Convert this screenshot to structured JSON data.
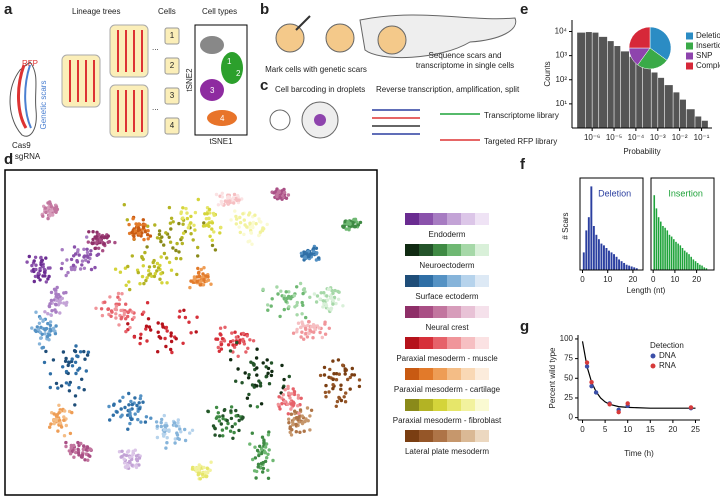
{
  "panels": {
    "a": {
      "letter": "a",
      "lineage_trees": "Lineage trees",
      "cells": "Cells",
      "cell_types": "Cell types",
      "rfp": "RFP",
      "genetic_scars": "Genetic scars",
      "cas9": "Cas9",
      "sgrna": "+ sgRNA",
      "cell_ids": [
        "1",
        "2",
        "3",
        "4"
      ],
      "ellipses": [
        "...",
        "..."
      ],
      "cluster_ids": [
        "1",
        "2",
        "3",
        "4"
      ],
      "tsne2": "tSNE2",
      "tsne1": "tSNE1"
    },
    "b": {
      "letter": "b",
      "mark": "Mark cells with genetic scars",
      "sequence": [
        "Sequence scars and",
        "transcriptome in single cells"
      ]
    },
    "c": {
      "letter": "c",
      "barcoding": "Cell barcoding in droplets",
      "rt": "Reverse transcription, amplification, split",
      "transcriptome": "Transcriptome library",
      "targeted": "Targeted RFP library"
    },
    "d": {
      "letter": "d",
      "legend": [
        {
          "name": "Endoderm",
          "colors": [
            "#6a2c91",
            "#8a52ab",
            "#a77cc2",
            "#c3a3d6",
            "#dcc6e8",
            "#efe3f5"
          ]
        },
        {
          "name": "Neuroectoderm",
          "colors": [
            "#102a12",
            "#24542a",
            "#3f8a44",
            "#6fb873",
            "#a6d8a8",
            "#d9f0d9"
          ]
        },
        {
          "name": "Surface ectoderm",
          "colors": [
            "#1f4e79",
            "#2f6fa6",
            "#5592c4",
            "#86b4da",
            "#b6d3ec",
            "#dde9f5"
          ]
        },
        {
          "name": "Neural crest",
          "colors": [
            "#8e2f68",
            "#a94f85",
            "#c2769f",
            "#d79dbb",
            "#e8c2d6",
            "#f5e1eb"
          ]
        },
        {
          "name": "Paraxial mesoderm - muscle",
          "colors": [
            "#b5121b",
            "#d6303a",
            "#e6626a",
            "#f0959a",
            "#f6bfc2",
            "#fbe2e3"
          ]
        },
        {
          "name": "Paraxial mesoderm - cartilage",
          "colors": [
            "#c85a12",
            "#e27a2a",
            "#ee9d55",
            "#f4bd86",
            "#f9d8b5",
            "#fcecdc"
          ]
        },
        {
          "name": "Paraxial mesoderm - fibroblast",
          "colors": [
            "#8a8a1a",
            "#b3b324",
            "#d4d43a",
            "#e6e66a",
            "#f2f29e",
            "#fafad2"
          ]
        },
        {
          "name": "Lateral plate mesoderm",
          "colors": [
            "#7a3e12",
            "#955628",
            "#ae7447",
            "#c6976c",
            "#dab995",
            "#ecd8c0"
          ]
        }
      ]
    },
    "e": {
      "letter": "e"
    },
    "f": {
      "letter": "f"
    },
    "g": {
      "letter": "g"
    }
  },
  "chart_data": [
    {
      "type": "histogram",
      "bins": [
        2e-07,
        5e-07,
        1e-06,
        2e-06,
        5e-06,
        1e-05,
        2e-05,
        5e-05,
        0.0001,
        0.0002,
        0.0005,
        0.001,
        0.002,
        0.005,
        0.01,
        0.02,
        0.05,
        0.1,
        0.2
      ],
      "values": [
        9000,
        9500,
        9000,
        6000,
        4000,
        2500,
        1500,
        900,
        600,
        350,
        200,
        120,
        60,
        30,
        15,
        6,
        3,
        2
      ],
      "color": "#555555",
      "xscale": "log",
      "yscale": "log",
      "xlim": [
        1.2e-07,
        0.3
      ],
      "ylim": [
        1,
        30000
      ],
      "xticks": [
        {
          "value": 1e-06,
          "label": "10⁻⁶"
        },
        {
          "value": 1e-05,
          "label": "10⁻⁵"
        },
        {
          "value": 0.0001,
          "label": "10⁻⁴"
        },
        {
          "value": 0.001,
          "label": "10⁻³"
        },
        {
          "value": 0.01,
          "label": "10⁻²"
        },
        {
          "value": 0.1,
          "label": "10⁻¹"
        }
      ],
      "yticks": [
        {
          "value": 10,
          "label": "10¹"
        },
        {
          "value": 100,
          "label": "10²"
        },
        {
          "value": 1000,
          "label": "10³"
        },
        {
          "value": 10000,
          "label": "10⁴"
        }
      ],
      "xlabel": "Probability",
      "ylabel": "Counts"
    },
    {
      "type": "pie",
      "categories": [
        "Deletion",
        "Insertion",
        "SNP",
        "Complex"
      ],
      "values": [
        35,
        25,
        15,
        25
      ],
      "colors": [
        "#2b8cc4",
        "#3aaa48",
        "#8e44ad",
        "#d62839"
      ]
    },
    {
      "type": "histogram",
      "title": "Deletion",
      "color": "#2b3fa0",
      "bins": [
        0,
        1,
        2,
        3,
        4,
        5,
        6,
        7,
        8,
        9,
        10,
        11,
        12,
        13,
        14,
        15,
        16,
        17,
        18,
        19,
        20,
        21,
        22
      ],
      "values": [
        20,
        45,
        60,
        95,
        50,
        40,
        35,
        30,
        28,
        25,
        22,
        20,
        18,
        15,
        12,
        10,
        8,
        6,
        5,
        4,
        3,
        2
      ],
      "xlim": [
        -1,
        24
      ],
      "ylim": [
        0,
        100
      ],
      "xticks": [
        0,
        10,
        20
      ],
      "xlabel": "Length (nt)",
      "ylabel": "# Scars"
    },
    {
      "type": "histogram",
      "title": "Insertion",
      "color": "#1fa33a",
      "bins": [
        0,
        1,
        2,
        3,
        4,
        5,
        6,
        7,
        8,
        9,
        10,
        11,
        12,
        13,
        14,
        15,
        16,
        17,
        18,
        19,
        20,
        21,
        22,
        23,
        24,
        25
      ],
      "values": [
        85,
        70,
        60,
        55,
        50,
        48,
        45,
        40,
        38,
        35,
        32,
        30,
        28,
        25,
        22,
        20,
        18,
        15,
        12,
        10,
        8,
        6,
        5,
        3,
        2
      ],
      "xlim": [
        -1,
        28
      ],
      "ylim": [
        0,
        100
      ],
      "xticks": [
        0,
        10,
        20
      ]
    },
    {
      "type": "scatter",
      "xlabel": "Time (h)",
      "ylabel": "Percent wild type",
      "xlim": [
        -1,
        26
      ],
      "ylim": [
        -3,
        105
      ],
      "xticks": [
        0,
        5,
        10,
        15,
        20,
        25
      ],
      "yticks": [
        0,
        25,
        50,
        75,
        100
      ],
      "legend_title": "Detection",
      "series": [
        {
          "name": "DNA",
          "color": "#3b4fa8",
          "x": [
            1,
            2,
            3,
            6,
            8,
            10,
            24
          ],
          "y": [
            65,
            40,
            32,
            18,
            10,
            15,
            12
          ]
        },
        {
          "name": "RNA",
          "color": "#d63a3a",
          "x": [
            1,
            2,
            6,
            8,
            10,
            24
          ],
          "y": [
            70,
            45,
            17,
            7,
            18,
            13
          ]
        }
      ],
      "fit": {
        "color": "#000000",
        "x": [
          0,
          1,
          2,
          3,
          4,
          5,
          6,
          8,
          10,
          15,
          20,
          25
        ],
        "y": [
          97,
          65,
          45,
          33,
          25,
          20,
          17,
          14,
          13,
          12,
          12,
          12
        ]
      }
    }
  ]
}
